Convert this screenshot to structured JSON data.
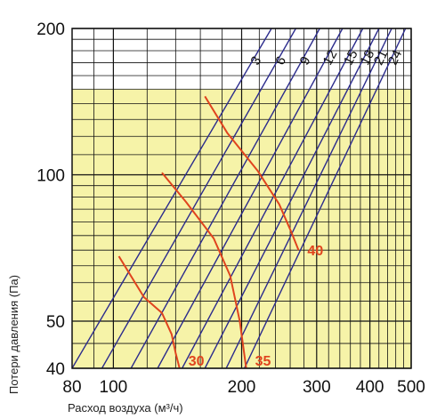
{
  "chart_data": {
    "type": "line",
    "xlabel": "Расход воздуха (м³/ч)",
    "ylabel": "Потери давления (Па)",
    "x_scale": "log",
    "y_scale": "log",
    "xlim": [
      80,
      500
    ],
    "ylim": [
      40,
      200
    ],
    "x_ticks": [
      "80",
      "100",
      "200",
      "300",
      "400",
      "500"
    ],
    "y_ticks": [
      "200",
      "100",
      "50",
      "40"
    ],
    "grid": true,
    "shaded_band": {
      "color": "#f6f3a8",
      "y_range": [
        40,
        150
      ]
    },
    "colors": {
      "grid": "#111111",
      "velocity_lines": "#2b2b8c",
      "curves": "#e0441e"
    },
    "velocity_lines": [
      {
        "label": "3",
        "points": [
          [
            80,
            40
          ],
          [
            235,
            200
          ]
        ]
      },
      {
        "label": "6",
        "points": [
          [
            94,
            40
          ],
          [
            268,
            200
          ]
        ]
      },
      {
        "label": "9",
        "points": [
          [
            110,
            40
          ],
          [
            305,
            200
          ]
        ]
      },
      {
        "label": "12",
        "points": [
          [
            127,
            40
          ],
          [
            345,
            200
          ]
        ]
      },
      {
        "label": "15",
        "points": [
          [
            145,
            40
          ],
          [
            385,
            200
          ]
        ]
      },
      {
        "label": "18",
        "points": [
          [
            164,
            40
          ],
          [
            420,
            200
          ]
        ]
      },
      {
        "label": "21",
        "points": [
          [
            184,
            40
          ],
          [
            450,
            200
          ]
        ]
      },
      {
        "label": "24",
        "points": [
          [
            203,
            40
          ],
          [
            485,
            200
          ]
        ]
      }
    ],
    "series": [
      {
        "name": "30",
        "points": [
          [
            103,
            68
          ],
          [
            118,
            56
          ],
          [
            130,
            52
          ],
          [
            137,
            47
          ],
          [
            140,
            43
          ],
          [
            143,
            40
          ]
        ]
      },
      {
        "name": "35",
        "points": [
          [
            130,
            101
          ],
          [
            148,
            88
          ],
          [
            172,
            74
          ],
          [
            188,
            62
          ],
          [
            198,
            50
          ],
          [
            205,
            40
          ]
        ]
      },
      {
        "name": "40",
        "points": [
          [
            164,
            145
          ],
          [
            185,
            122
          ],
          [
            218,
            102
          ],
          [
            245,
            87
          ],
          [
            262,
            76
          ],
          [
            272,
            70
          ]
        ]
      }
    ]
  }
}
